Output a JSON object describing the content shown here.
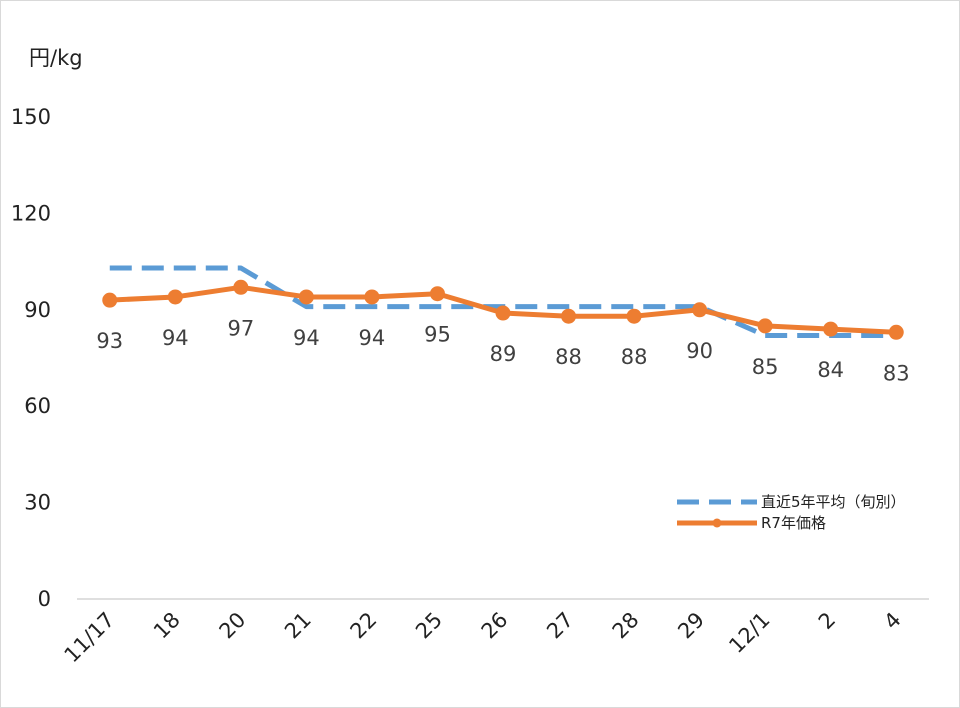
{
  "chart_data": {
    "type": "line",
    "ylabel": "円/kg",
    "ylim": [
      0,
      150
    ],
    "yticks": [
      "0",
      "30",
      "60",
      "90",
      "120",
      "150"
    ],
    "categories": [
      "11/17",
      "18",
      "20",
      "21",
      "22",
      "25",
      "26",
      "27",
      "28",
      "29",
      "12/1",
      "2",
      "4"
    ],
    "series": [
      {
        "name": "直近5年平均（旬別）",
        "style": "dashed",
        "color": "#5B9BD5",
        "values": [
          103,
          103,
          103,
          91,
          91,
          91,
          91,
          91,
          91,
          91,
          82,
          82,
          82
        ]
      },
      {
        "name": "R7年価格",
        "style": "solid-markers",
        "color": "#ED7D31",
        "values": [
          93,
          94,
          97,
          94,
          94,
          95,
          89,
          88,
          88,
          90,
          85,
          84,
          83
        ],
        "data_labels": [
          "93",
          "94",
          "97",
          "94",
          "94",
          "95",
          "89",
          "88",
          "88",
          "90",
          "85",
          "84",
          "83"
        ]
      }
    ],
    "grid": false,
    "legend_position": "right"
  }
}
